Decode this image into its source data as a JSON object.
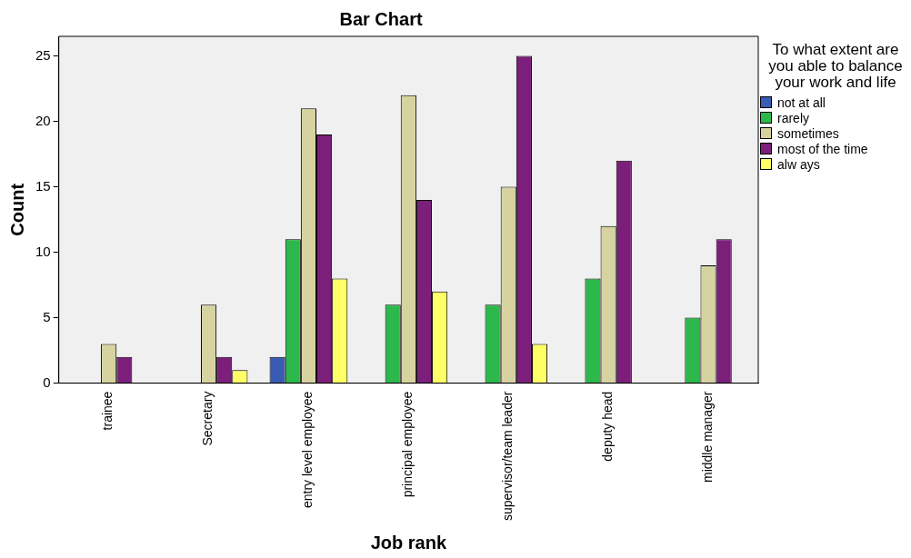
{
  "chart_data": {
    "type": "bar",
    "title": "Bar Chart",
    "xlabel": "Job rank",
    "ylabel": "Count",
    "legend_title": "To what extent are you able to balance your work and life",
    "legend": "right",
    "grid": false,
    "categories": [
      "trainee",
      "Secretary",
      "entry level employee",
      "principal employee",
      "supervisor/team leader",
      "deputy head",
      "middle manager"
    ],
    "ylim": [
      0,
      26.5
    ],
    "yticks": [
      0,
      5,
      10,
      15,
      20,
      25
    ],
    "series": [
      {
        "name": "not at all",
        "color": "#3a5bb4",
        "values": [
          null,
          null,
          2,
          null,
          null,
          null,
          null
        ]
      },
      {
        "name": "rarely",
        "color": "#2db84b",
        "values": [
          null,
          null,
          11,
          6,
          6,
          8,
          5
        ]
      },
      {
        "name": "sometimes",
        "color": "#d6d3a1",
        "values": [
          3,
          6,
          21,
          22,
          15,
          12,
          9
        ]
      },
      {
        "name": "most of the time",
        "color": "#7b1f7b",
        "values": [
          2,
          2,
          19,
          14,
          25,
          17,
          11
        ]
      },
      {
        "name": "alw ays",
        "color": "#ffff66",
        "values": [
          null,
          1,
          8,
          7,
          3,
          null,
          null
        ]
      }
    ]
  }
}
